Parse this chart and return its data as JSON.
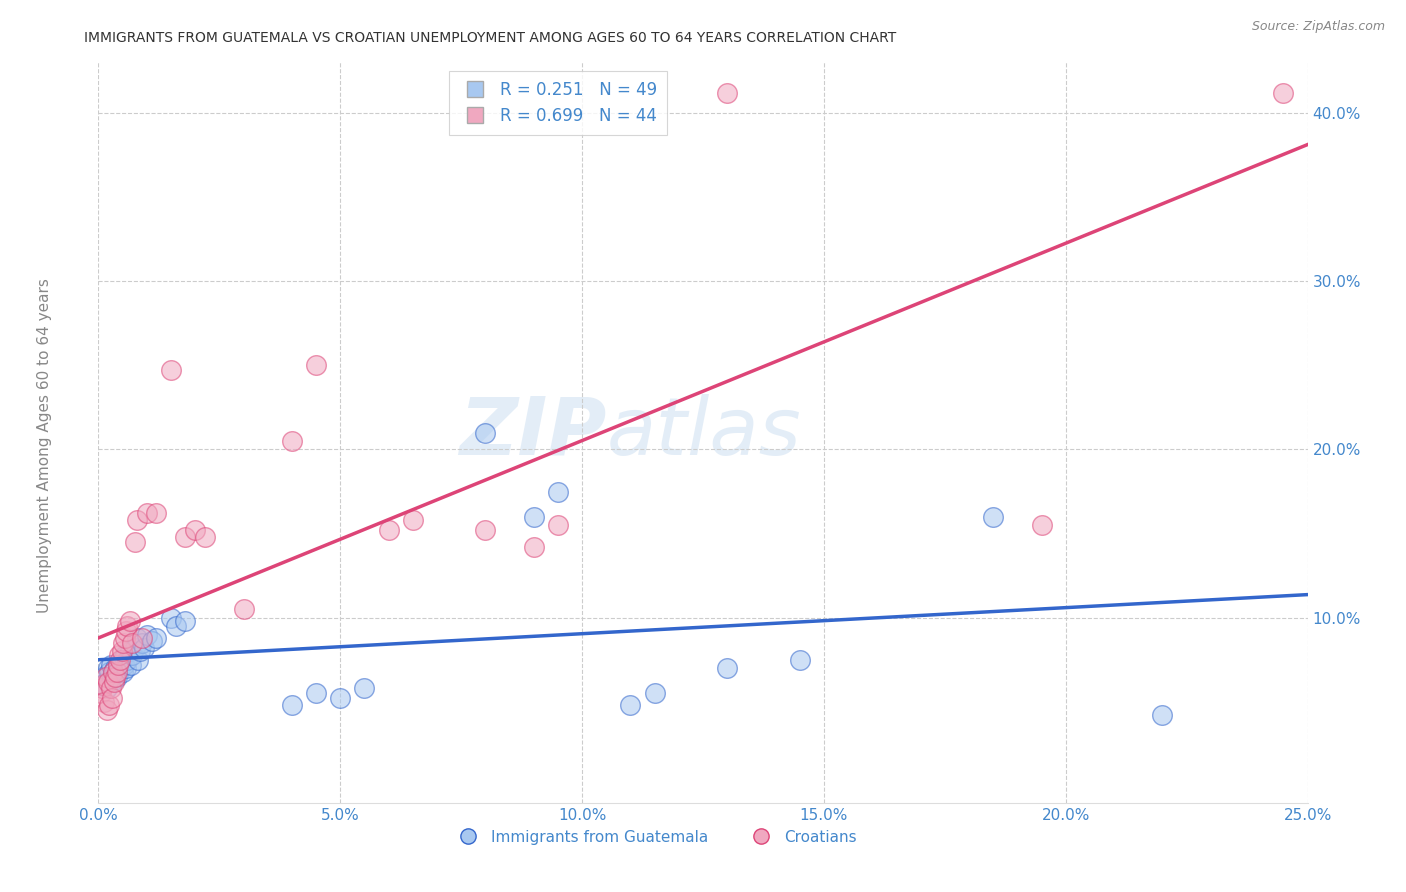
{
  "title": "IMMIGRANTS FROM GUATEMALA VS CROATIAN UNEMPLOYMENT AMONG AGES 60 TO 64 YEARS CORRELATION CHART",
  "source": "Source: ZipAtlas.com",
  "ylabel": "Unemployment Among Ages 60 to 64 years",
  "xlabel_blue": "Immigrants from Guatemala",
  "xlabel_pink": "Croatians",
  "xmin": 0.0,
  "xmax": 0.25,
  "ymin": -0.01,
  "ymax": 0.43,
  "yticks": [
    0.1,
    0.2,
    0.3,
    0.4
  ],
  "xticks": [
    0.0,
    0.05,
    0.1,
    0.15,
    0.2,
    0.25
  ],
  "legend_blue_r": "0.251",
  "legend_blue_n": "49",
  "legend_pink_r": "0.699",
  "legend_pink_n": "44",
  "color_blue": "#A8C8F0",
  "color_pink": "#F0A8C0",
  "line_blue": "#3366CC",
  "line_pink": "#DD4477",
  "watermark": "ZIPAtlas",
  "watermark_color": "#C8DCF0",
  "title_color": "#333333",
  "axis_label_color": "#888888",
  "tick_label_color": "#4488CC",
  "scatter_blue": [
    [
      0.0005,
      0.06
    ],
    [
      0.001,
      0.065
    ],
    [
      0.0015,
      0.062
    ],
    [
      0.0018,
      0.058
    ],
    [
      0.002,
      0.07
    ],
    [
      0.0022,
      0.068
    ],
    [
      0.0025,
      0.072
    ],
    [
      0.0028,
      0.065
    ],
    [
      0.003,
      0.068
    ],
    [
      0.0032,
      0.063
    ],
    [
      0.0035,
      0.07
    ],
    [
      0.0038,
      0.065
    ],
    [
      0.004,
      0.072
    ],
    [
      0.0042,
      0.068
    ],
    [
      0.0045,
      0.07
    ],
    [
      0.0048,
      0.075
    ],
    [
      0.005,
      0.068
    ],
    [
      0.0052,
      0.072
    ],
    [
      0.0055,
      0.078
    ],
    [
      0.0058,
      0.07
    ],
    [
      0.006,
      0.075
    ],
    [
      0.0065,
      0.08
    ],
    [
      0.0068,
      0.072
    ],
    [
      0.007,
      0.078
    ],
    [
      0.0075,
      0.082
    ],
    [
      0.008,
      0.088
    ],
    [
      0.0082,
      0.075
    ],
    [
      0.0085,
      0.08
    ],
    [
      0.009,
      0.085
    ],
    [
      0.0095,
      0.082
    ],
    [
      0.01,
      0.09
    ],
    [
      0.011,
      0.086
    ],
    [
      0.012,
      0.088
    ],
    [
      0.015,
      0.1
    ],
    [
      0.016,
      0.095
    ],
    [
      0.018,
      0.098
    ],
    [
      0.04,
      0.048
    ],
    [
      0.045,
      0.055
    ],
    [
      0.05,
      0.052
    ],
    [
      0.055,
      0.058
    ],
    [
      0.08,
      0.21
    ],
    [
      0.09,
      0.16
    ],
    [
      0.095,
      0.175
    ],
    [
      0.11,
      0.048
    ],
    [
      0.115,
      0.055
    ],
    [
      0.13,
      0.07
    ],
    [
      0.145,
      0.075
    ],
    [
      0.185,
      0.16
    ],
    [
      0.22,
      0.042
    ]
  ],
  "scatter_pink": [
    [
      0.0005,
      0.055
    ],
    [
      0.0008,
      0.058
    ],
    [
      0.001,
      0.06
    ],
    [
      0.0012,
      0.05
    ],
    [
      0.0015,
      0.065
    ],
    [
      0.0018,
      0.045
    ],
    [
      0.002,
      0.062
    ],
    [
      0.0022,
      0.048
    ],
    [
      0.0025,
      0.058
    ],
    [
      0.0028,
      0.052
    ],
    [
      0.003,
      0.068
    ],
    [
      0.0032,
      0.062
    ],
    [
      0.0035,
      0.065
    ],
    [
      0.0038,
      0.068
    ],
    [
      0.004,
      0.072
    ],
    [
      0.0042,
      0.078
    ],
    [
      0.0045,
      0.075
    ],
    [
      0.0048,
      0.08
    ],
    [
      0.005,
      0.085
    ],
    [
      0.0055,
      0.088
    ],
    [
      0.0058,
      0.092
    ],
    [
      0.006,
      0.095
    ],
    [
      0.0065,
      0.098
    ],
    [
      0.007,
      0.085
    ],
    [
      0.0075,
      0.145
    ],
    [
      0.008,
      0.158
    ],
    [
      0.009,
      0.088
    ],
    [
      0.01,
      0.162
    ],
    [
      0.012,
      0.162
    ],
    [
      0.015,
      0.247
    ],
    [
      0.018,
      0.148
    ],
    [
      0.02,
      0.152
    ],
    [
      0.022,
      0.148
    ],
    [
      0.03,
      0.105
    ],
    [
      0.04,
      0.205
    ],
    [
      0.045,
      0.25
    ],
    [
      0.06,
      0.152
    ],
    [
      0.065,
      0.158
    ],
    [
      0.08,
      0.152
    ],
    [
      0.09,
      0.142
    ],
    [
      0.095,
      0.155
    ],
    [
      0.13,
      0.412
    ],
    [
      0.195,
      0.155
    ],
    [
      0.245,
      0.412
    ]
  ]
}
